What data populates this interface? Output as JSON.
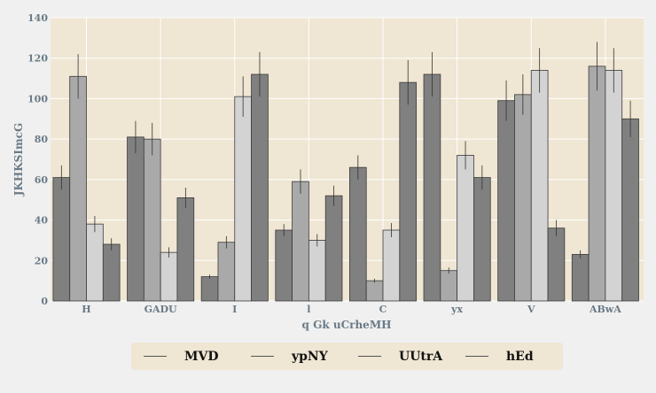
{
  "chart_data": {
    "type": "bar",
    "xlabel": "q Gk uCrheMH",
    "ylabel": "JKHKSImcG",
    "ylim": [
      0,
      140
    ],
    "yticks": [
      0,
      20,
      40,
      60,
      80,
      100,
      120,
      140
    ],
    "categories": [
      "H",
      "GADU",
      "I",
      "l",
      "C",
      "yx",
      "V",
      "ABwA"
    ],
    "grid": true,
    "legend_position": "bottom",
    "series": [
      {
        "name": "MVD",
        "color": "#808080",
        "values": [
          61,
          81,
          12,
          35,
          66,
          112,
          99,
          23
        ],
        "errors": [
          6,
          8,
          1,
          3,
          6,
          11,
          10,
          2
        ]
      },
      {
        "name": "ypNY",
        "color": "#a9a9a9",
        "values": [
          111,
          80,
          29,
          59,
          10,
          15,
          102,
          116
        ],
        "errors": [
          11,
          8,
          3,
          6,
          1,
          1.5,
          10,
          12
        ]
      },
      {
        "name": "UUtrA",
        "color": "#d3d3d3",
        "values": [
          38,
          24,
          101,
          30,
          35,
          72,
          114,
          114
        ],
        "errors": [
          4,
          2.5,
          10,
          3,
          3.5,
          7,
          11,
          11
        ]
      },
      {
        "name": "hEd",
        "color": "#808080",
        "values": [
          28,
          51,
          112,
          52,
          108,
          61,
          36,
          90
        ],
        "errors": [
          3,
          5,
          11,
          5,
          11,
          6,
          4,
          9
        ]
      }
    ]
  }
}
